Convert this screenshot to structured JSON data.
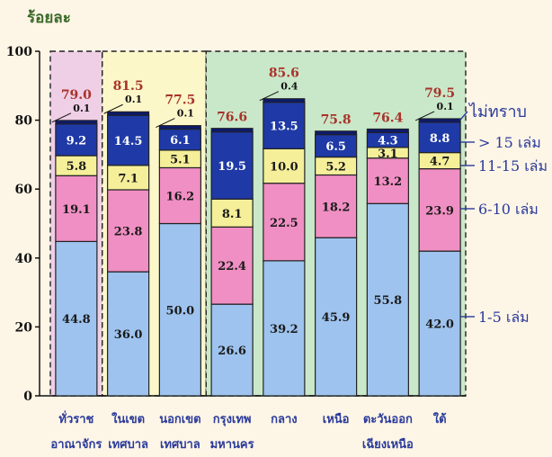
{
  "chart_data": {
    "type": "bar",
    "stacked": true,
    "ylabel": "ร้อยละ",
    "ylim": [
      0,
      100
    ],
    "yticks": [
      0,
      20,
      40,
      60,
      80,
      100
    ],
    "categories": [
      [
        "ทั่วราช",
        "อาณาจักร"
      ],
      [
        "ในเขต",
        "เทศบาล"
      ],
      [
        "นอกเขต",
        "เทศบาล"
      ],
      [
        "กรุงเทพ",
        "มหานคร"
      ],
      [
        "กลาง",
        ""
      ],
      [
        "เหนือ",
        ""
      ],
      [
        "ตะวันออก",
        "เฉียงเหนือ"
      ],
      [
        "ใต้",
        ""
      ]
    ],
    "series": [
      {
        "name": "1-5 เล่ม",
        "color": "#9ec3ee",
        "values": [
          44.8,
          36.0,
          50.0,
          26.6,
          39.2,
          45.9,
          55.8,
          42.0
        ]
      },
      {
        "name": "6-10 เล่ม",
        "color": "#f08fc3",
        "values": [
          19.1,
          23.8,
          16.2,
          22.4,
          22.5,
          18.2,
          13.2,
          23.9
        ]
      },
      {
        "name": "11-15 เล่ม",
        "color": "#f5ef9a",
        "values": [
          5.8,
          7.1,
          5.1,
          8.1,
          10.0,
          5.2,
          3.1,
          4.7
        ]
      },
      {
        "name": "> 15 เล่ม",
        "color": "#1f3aa6",
        "values": [
          9.2,
          14.5,
          6.1,
          19.5,
          13.5,
          6.5,
          4.3,
          8.8
        ]
      },
      {
        "name": "ไม่ทราบ",
        "color": "#1f3aa6",
        "values": [
          0.1,
          0.1,
          0.1,
          null,
          0.4,
          null,
          null,
          0.1
        ]
      }
    ],
    "totals": [
      79.0,
      81.5,
      77.5,
      76.6,
      85.6,
      75.8,
      76.4,
      79.5
    ],
    "groups": [
      {
        "from": 0,
        "to": 0,
        "color": "#efcfe6"
      },
      {
        "from": 1,
        "to": 2,
        "color": "#fcf7c9"
      },
      {
        "from": 3,
        "to": 7,
        "color": "#c9e8c9"
      }
    ],
    "colors": {
      "total_label": "#a8332a",
      "legend_text": "#2a3a9a",
      "axis_text": "#111111",
      "category_text": "#2a3a9a",
      "title_text": "#3a6a2a"
    }
  }
}
